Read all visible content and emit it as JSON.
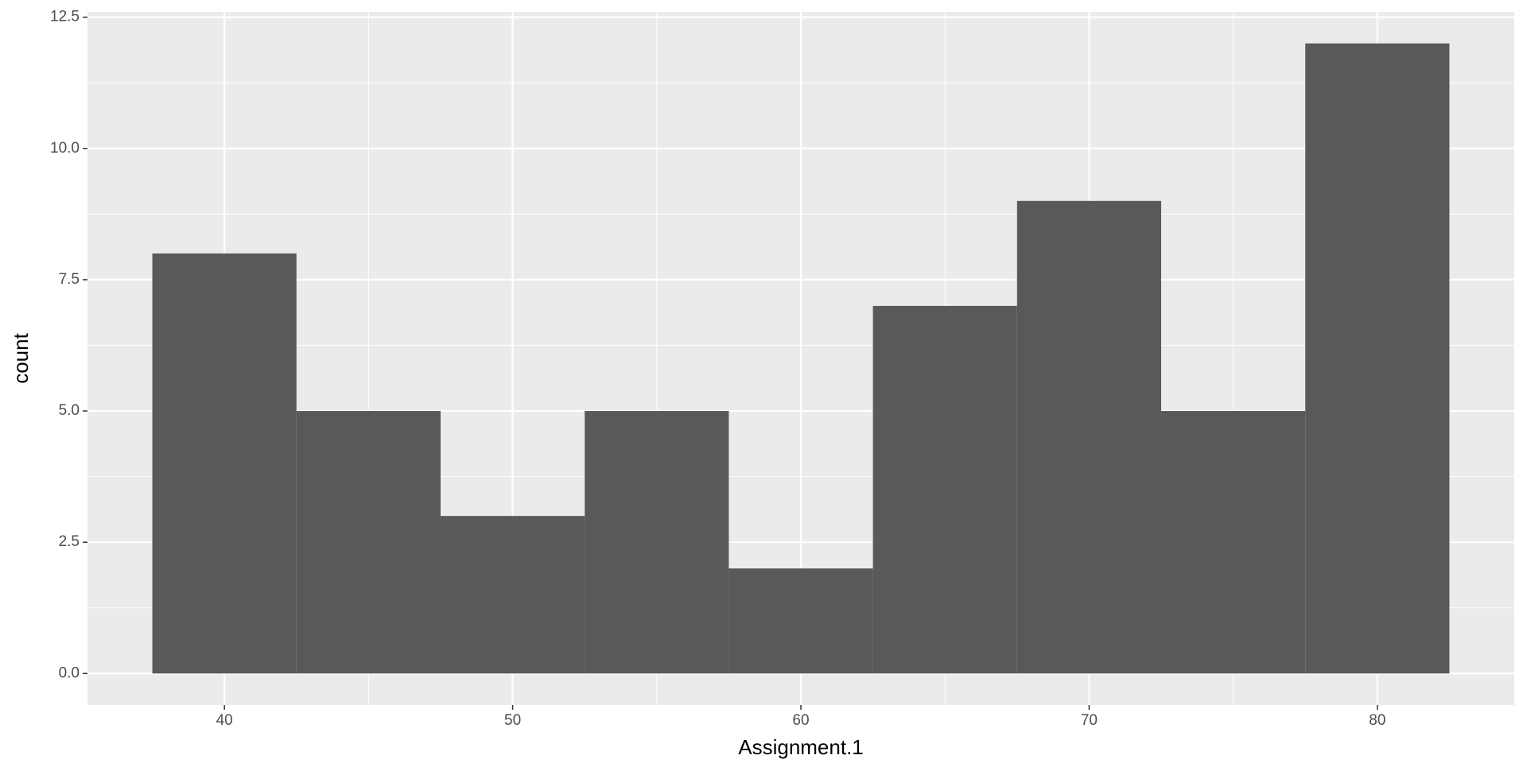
{
  "chart_data": {
    "type": "histogram",
    "x_label": "Assignment.1",
    "y_label": "count",
    "bins": [
      37.5,
      42.5,
      47.5,
      52.5,
      57.5,
      62.5,
      67.5,
      72.5,
      77.5,
      82.5
    ],
    "values": [
      8,
      5,
      3,
      5,
      2,
      7,
      9,
      5,
      12
    ],
    "color": "#595959",
    "xlim": [
      35.25,
      84.75
    ],
    "ylim": [
      -0.6,
      12.6
    ],
    "xticks": [
      40,
      50,
      60,
      70,
      80
    ],
    "yticks": [
      {
        "value": 0,
        "label": "0.0"
      },
      {
        "value": 2.5,
        "label": "2.5"
      },
      {
        "value": 5,
        "label": "5.0"
      },
      {
        "value": 7.5,
        "label": "7.5"
      },
      {
        "value": 10,
        "label": "10.0"
      },
      {
        "value": 12.5,
        "label": "12.5"
      }
    ],
    "x_minor_ticks": [
      45,
      55,
      65,
      75
    ],
    "y_minor_ticks": [
      1.25,
      3.75,
      6.25,
      8.75,
      11.25
    ],
    "grid": true
  }
}
